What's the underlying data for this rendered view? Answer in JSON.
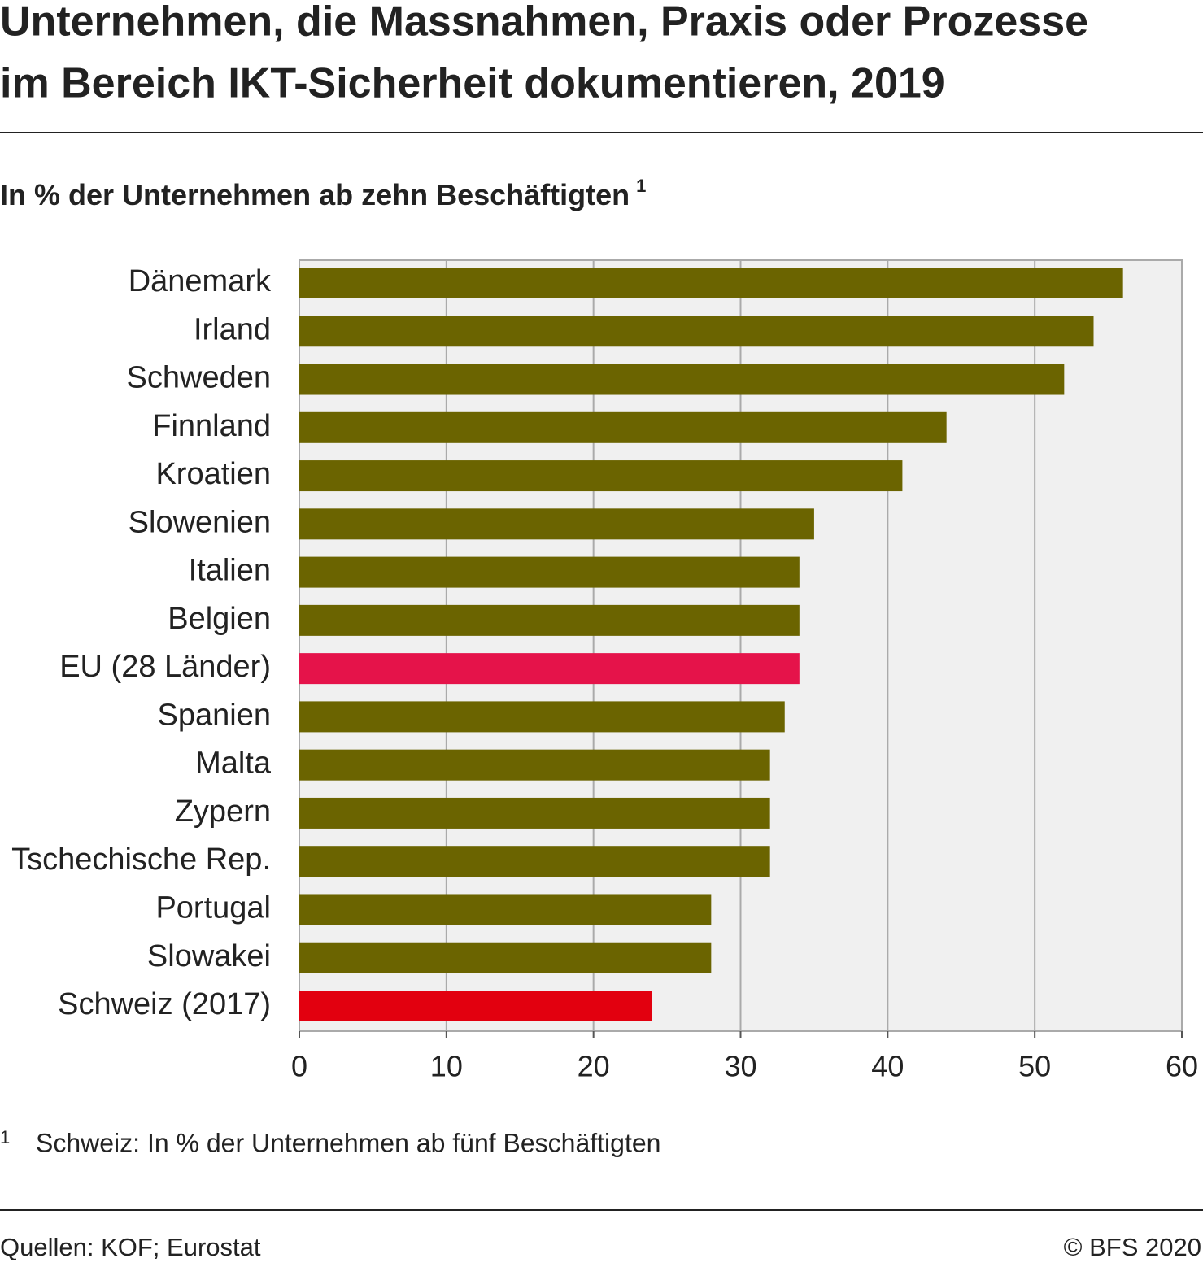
{
  "chart_data": {
    "type": "hbar",
    "title": [
      "Unternehmen, die Massnahmen, Praxis oder Prozesse",
      "im Bereich IKT-Sicherheit dokumentieren, 2019"
    ],
    "subtitle": "In % der Unternehmen ab zehn Beschäftigten",
    "subtitle_note": "1",
    "categories": [
      "Dänemark",
      "Irland",
      "Schweden",
      "Finnland",
      "Kroatien",
      "Slowenien",
      "Italien",
      "Belgien",
      "EU (28 Länder)",
      "Spanien",
      "Malta",
      "Zypern",
      "Tschechische Rep.",
      "Portugal",
      "Slowakei",
      "Schweiz (2017)"
    ],
    "values": [
      56,
      54,
      52,
      44,
      41,
      35,
      34,
      34,
      34,
      33,
      32,
      32,
      32,
      28,
      28,
      24
    ],
    "colors": [
      "#6b6400",
      "#6b6400",
      "#6b6400",
      "#6b6400",
      "#6b6400",
      "#6b6400",
      "#6b6400",
      "#6b6400",
      "#e5134a",
      "#6b6400",
      "#6b6400",
      "#6b6400",
      "#6b6400",
      "#6b6400",
      "#6b6400",
      "#e2000f"
    ],
    "xlim": [
      0,
      60
    ],
    "xticks": [
      0,
      10,
      20,
      30,
      40,
      50,
      60
    ],
    "grid": true,
    "footnote_marker": "1",
    "footnote": "Schweiz: In % der Unternehmen ab fünf Beschäftigten",
    "source": "Quellen: KOF; Eurostat",
    "copyright": "© BFS 2020"
  }
}
